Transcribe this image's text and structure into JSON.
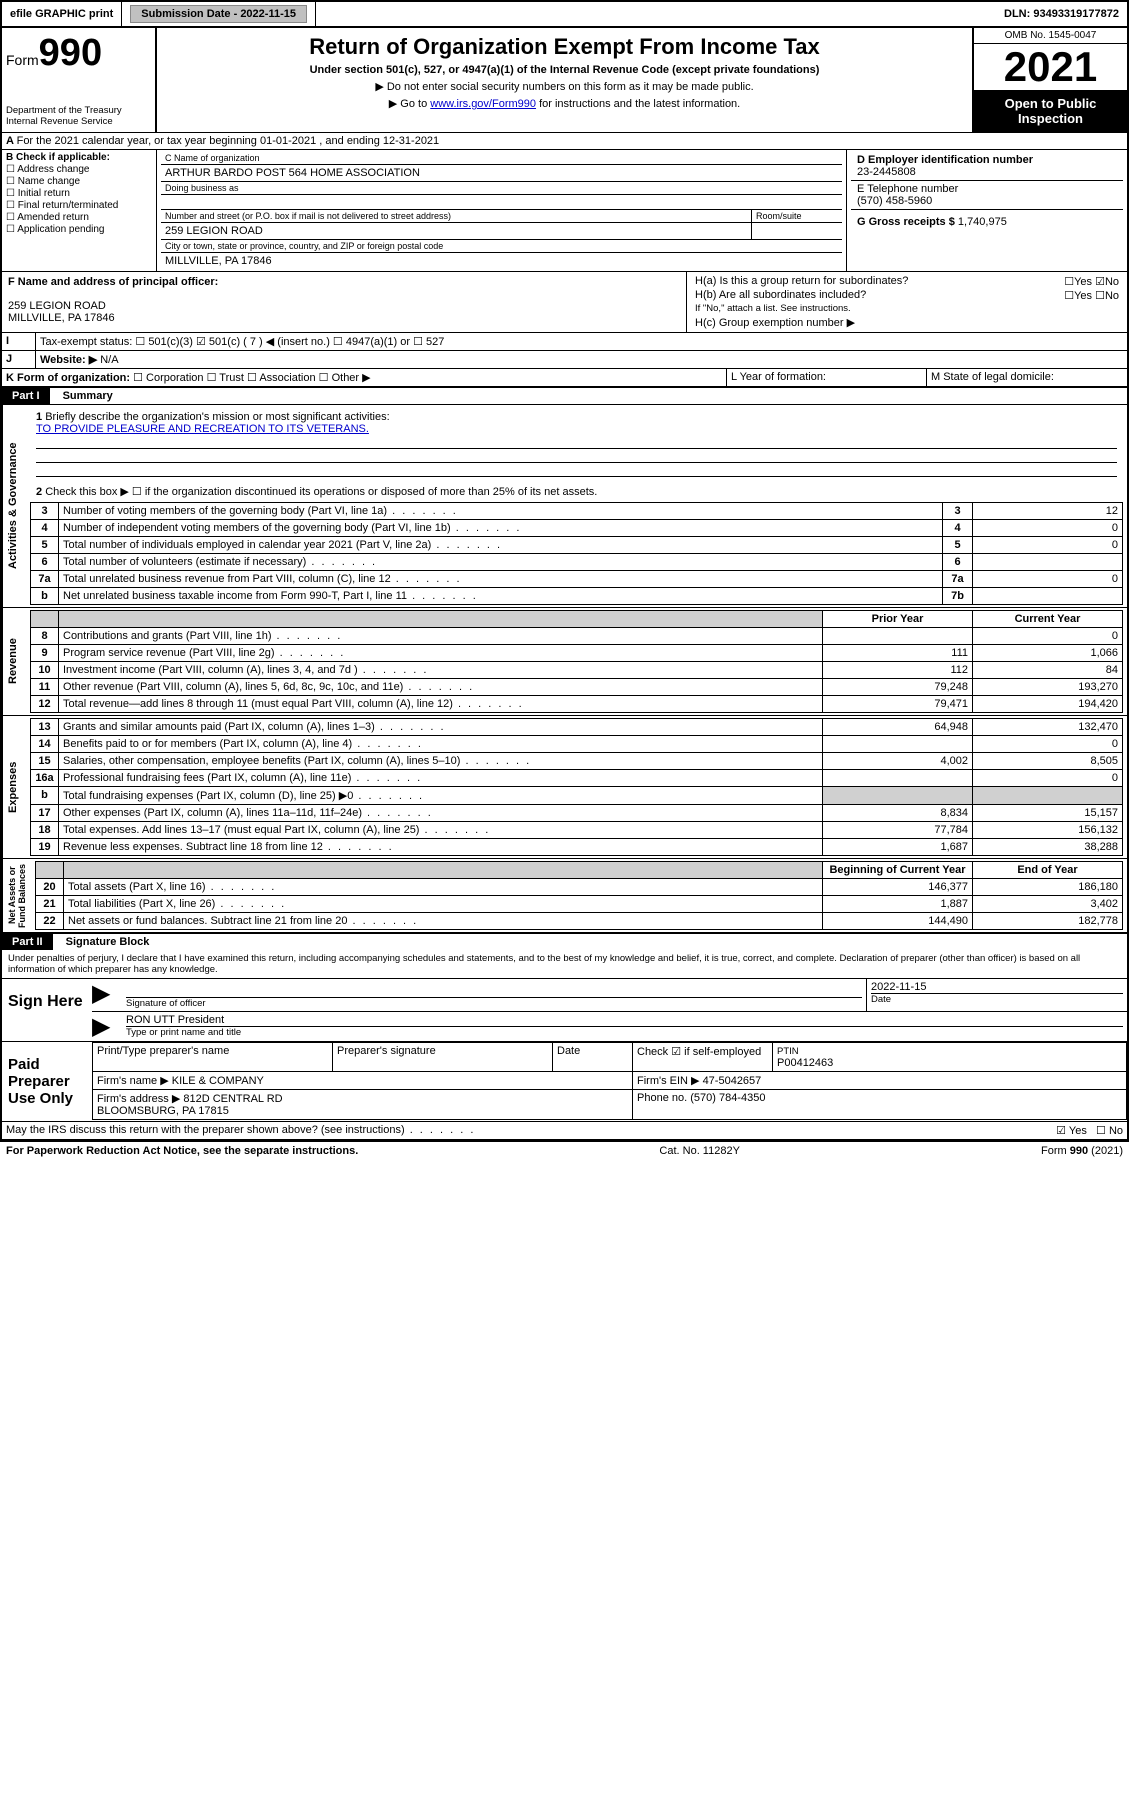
{
  "topbar": {
    "efile": "efile GRAPHIC print",
    "sub_label": "Submission Date - 2022-11-15",
    "dln": "DLN: 93493319177872"
  },
  "header": {
    "form_word": "Form",
    "form_num": "990",
    "title": "Return of Organization Exempt From Income Tax",
    "sub": "Under section 501(c), 527, or 4947(a)(1) of the Internal Revenue Code (except private foundations)",
    "note1": "▶ Do not enter social security numbers on this form as it may be made public.",
    "note2_pre": "▶ Go to ",
    "note2_link": "www.irs.gov/Form990",
    "note2_post": " for instructions and the latest information.",
    "dept": "Department of the Treasury\nInternal Revenue Service",
    "omb": "OMB No. 1545-0047",
    "year": "2021",
    "inspect": "Open to Public Inspection"
  },
  "line_a": "For the 2021 calendar year, or tax year beginning 01-01-2021   , and ending 12-31-2021",
  "b": {
    "label": "B Check if applicable:",
    "opts": [
      "Address change",
      "Name change",
      "Initial return",
      "Final return/terminated",
      "Amended return",
      "Application pending"
    ]
  },
  "c": {
    "label": "C Name of organization",
    "org": "ARTHUR BARDO POST 564 HOME ASSOCIATION",
    "dba_label": "Doing business as",
    "addr_label1": "Number and street (or P.O. box if mail is not delivered to street address)",
    "addr_label2": "Room/suite",
    "street": "259 LEGION ROAD",
    "city_label": "City or town, state or province, country, and ZIP or foreign postal code",
    "city": "MILLVILLE, PA  17846"
  },
  "d": {
    "label": "D Employer identification number",
    "val": "23-2445808"
  },
  "e": {
    "label": "E Telephone number",
    "val": "(570) 458-5960"
  },
  "g": {
    "label": "G Gross receipts $",
    "val": "1,740,975"
  },
  "f": {
    "label": "F Name and address of principal officer:",
    "addr1": "259 LEGION ROAD",
    "addr2": "MILLVILLE, PA  17846"
  },
  "h": {
    "a": "H(a)  Is this a group return for subordinates?",
    "b": "H(b)  Are all subordinates included?",
    "b_note": "If \"No,\" attach a list. See instructions.",
    "c": "H(c)  Group exemption number ▶",
    "yes": "Yes",
    "no": "No"
  },
  "i": {
    "label": "Tax-exempt status:",
    "opts": [
      "501(c)(3)",
      "501(c) ( 7 ) ◀ (insert no.)",
      "4947(a)(1) or",
      "527"
    ],
    "checked": 1
  },
  "j": {
    "label": "Website: ▶",
    "val": "N/A"
  },
  "k": {
    "label": "K Form of organization:",
    "opts": [
      "Corporation",
      "Trust",
      "Association",
      "Other ▶"
    ]
  },
  "l": "L Year of formation:",
  "m": "M State of legal domicile:",
  "part1": {
    "hdr": "Part I",
    "title": "Summary"
  },
  "p1": {
    "l1": "Briefly describe the organization's mission or most significant activities:",
    "l1v": "TO PROVIDE PLEASURE AND RECREATION TO ITS VETERANS.",
    "l2": "Check this box ▶ ☐  if the organization discontinued its operations or disposed of more than 25% of its net assets.",
    "rows_top": [
      {
        "n": "3",
        "t": "Number of voting members of the governing body (Part VI, line 1a)",
        "b": "3",
        "v": "12"
      },
      {
        "n": "4",
        "t": "Number of independent voting members of the governing body (Part VI, line 1b)",
        "b": "4",
        "v": "0"
      },
      {
        "n": "5",
        "t": "Total number of individuals employed in calendar year 2021 (Part V, line 2a)",
        "b": "5",
        "v": "0"
      },
      {
        "n": "6",
        "t": "Total number of volunteers (estimate if necessary)",
        "b": "6",
        "v": ""
      },
      {
        "n": "7a",
        "t": "Total unrelated business revenue from Part VIII, column (C), line 12",
        "b": "7a",
        "v": "0"
      },
      {
        "n": "b",
        "t": "Net unrelated business taxable income from Form 990-T, Part I, line 11",
        "b": "7b",
        "v": ""
      }
    ],
    "col_hdr": {
      "prior": "Prior Year",
      "curr": "Current Year"
    },
    "rev": [
      {
        "n": "8",
        "t": "Contributions and grants (Part VIII, line 1h)",
        "p": "",
        "c": "0"
      },
      {
        "n": "9",
        "t": "Program service revenue (Part VIII, line 2g)",
        "p": "111",
        "c": "1,066"
      },
      {
        "n": "10",
        "t": "Investment income (Part VIII, column (A), lines 3, 4, and 7d )",
        "p": "112",
        "c": "84"
      },
      {
        "n": "11",
        "t": "Other revenue (Part VIII, column (A), lines 5, 6d, 8c, 9c, 10c, and 11e)",
        "p": "79,248",
        "c": "193,270"
      },
      {
        "n": "12",
        "t": "Total revenue—add lines 8 through 11 (must equal Part VIII, column (A), line 12)",
        "p": "79,471",
        "c": "194,420"
      }
    ],
    "exp": [
      {
        "n": "13",
        "t": "Grants and similar amounts paid (Part IX, column (A), lines 1–3)",
        "p": "64,948",
        "c": "132,470"
      },
      {
        "n": "14",
        "t": "Benefits paid to or for members (Part IX, column (A), line 4)",
        "p": "",
        "c": "0"
      },
      {
        "n": "15",
        "t": "Salaries, other compensation, employee benefits (Part IX, column (A), lines 5–10)",
        "p": "4,002",
        "c": "8,505"
      },
      {
        "n": "16a",
        "t": "Professional fundraising fees (Part IX, column (A), line 11e)",
        "p": "",
        "c": "0"
      },
      {
        "n": "b",
        "t": "Total fundraising expenses (Part IX, column (D), line 25) ▶0",
        "p": "shade",
        "c": "shade"
      },
      {
        "n": "17",
        "t": "Other expenses (Part IX, column (A), lines 11a–11d, 11f–24e)",
        "p": "8,834",
        "c": "15,157"
      },
      {
        "n": "18",
        "t": "Total expenses. Add lines 13–17 (must equal Part IX, column (A), line 25)",
        "p": "77,784",
        "c": "156,132"
      },
      {
        "n": "19",
        "t": "Revenue less expenses. Subtract line 18 from line 12",
        "p": "1,687",
        "c": "38,288"
      }
    ],
    "na_hdr": {
      "beg": "Beginning of Current Year",
      "end": "End of Year"
    },
    "na": [
      {
        "n": "20",
        "t": "Total assets (Part X, line 16)",
        "p": "146,377",
        "c": "186,180"
      },
      {
        "n": "21",
        "t": "Total liabilities (Part X, line 26)",
        "p": "1,887",
        "c": "3,402"
      },
      {
        "n": "22",
        "t": "Net assets or fund balances. Subtract line 21 from line 20",
        "p": "144,490",
        "c": "182,778"
      }
    ],
    "side": {
      "ag": "Activities & Governance",
      "rev": "Revenue",
      "exp": "Expenses",
      "na": "Net Assets or\nFund Balances"
    }
  },
  "part2": {
    "hdr": "Part II",
    "title": "Signature Block"
  },
  "decl": "Under penalties of perjury, I declare that I have examined this return, including accompanying schedules and statements, and to the best of my knowledge and belief, it is true, correct, and complete. Declaration of preparer (other than officer) is based on all information of which preparer has any knowledge.",
  "sign": {
    "here": "Sign Here",
    "sig_of": "Signature of officer",
    "date": "Date",
    "date_v": "2022-11-15",
    "name": "RON UTT President",
    "name_l": "Type or print name and title"
  },
  "paid": {
    "label": "Paid Preparer Use Only",
    "cols": [
      "Print/Type preparer's name",
      "Preparer's signature",
      "Date"
    ],
    "check": "Check ☑ if self-employed",
    "ptin_l": "PTIN",
    "ptin": "P00412463",
    "firm_l": "Firm's name   ▶",
    "firm": "KILE & COMPANY",
    "ein_l": "Firm's EIN ▶",
    "ein": "47-5042657",
    "addr_l": "Firm's address ▶",
    "addr": "812D CENTRAL RD",
    "addr2": "BLOOMSBURG, PA  17815",
    "ph_l": "Phone no.",
    "ph": "(570) 784-4350"
  },
  "discuss": {
    "q": "May the IRS discuss this return with the preparer shown above? (see instructions)",
    "yes": "Yes",
    "no": "No"
  },
  "footer": {
    "l": "For Paperwork Reduction Act Notice, see the separate instructions.",
    "m": "Cat. No. 11282Y",
    "r": "Form 990 (2021)"
  }
}
